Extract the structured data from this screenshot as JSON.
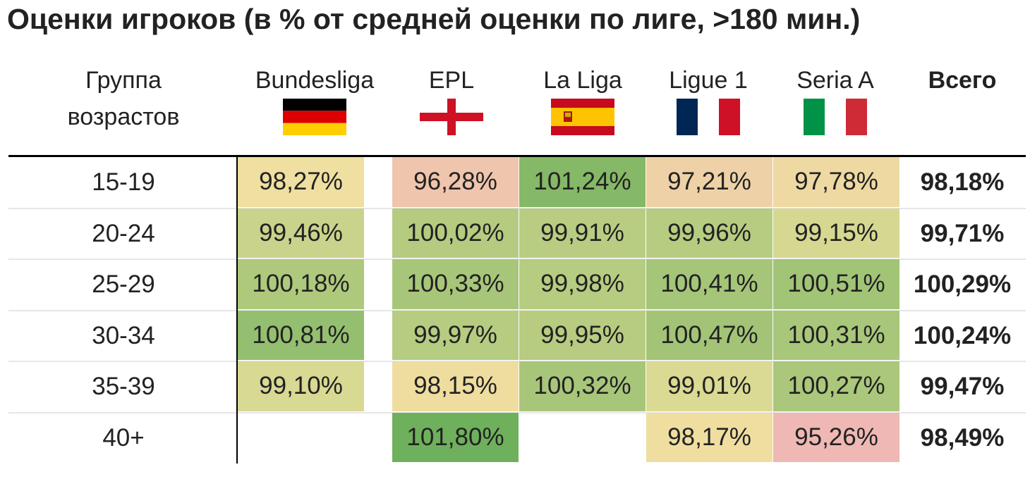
{
  "title": "Оценки игроков (в % от средней оценки по лиге, >180 мин.)",
  "chart_data": {
    "type": "heatmap",
    "title": "Оценки игроков (в % от средней оценки по лиге, >180 мин.)",
    "row_header": "Группа возрастов",
    "columns": [
      {
        "name": "Bundesliga",
        "flag": "germany-flag"
      },
      {
        "name": "EPL",
        "flag": "england-flag"
      },
      {
        "name": "La Liga",
        "flag": "spain-flag"
      },
      {
        "name": "Ligue 1",
        "flag": "france-flag"
      },
      {
        "name": "Seria A",
        "flag": "italy-flag"
      }
    ],
    "total_header": "Всего",
    "rows": [
      {
        "label": "15-19",
        "values": [
          "98,27%",
          "96,28%",
          "101,24%",
          "97,21%",
          "97,78%"
        ],
        "total": "98,18%"
      },
      {
        "label": "20-24",
        "values": [
          "99,46%",
          "100,02%",
          "99,91%",
          "99,96%",
          "99,15%"
        ],
        "total": "99,71%"
      },
      {
        "label": "25-29",
        "values": [
          "100,18%",
          "100,33%",
          "99,98%",
          "100,41%",
          "100,51%"
        ],
        "total": "100,29%"
      },
      {
        "label": "30-34",
        "values": [
          "100,81%",
          "99,97%",
          "99,95%",
          "100,47%",
          "100,31%"
        ],
        "total": "100,24%"
      },
      {
        "label": "35-39",
        "values": [
          "99,10%",
          "98,15%",
          "100,32%",
          "99,01%",
          "100,27%"
        ],
        "total": "99,47%"
      },
      {
        "label": "40+",
        "values": [
          null,
          "101,80%",
          null,
          "98,17%",
          "95,26%"
        ],
        "total": "98,49%"
      }
    ],
    "colors": {
      "low": "#efb8b4",
      "mid": "#efe29e",
      "high": "#6fb05c",
      "flag_germany": [
        "#000000",
        "#dd0000",
        "#ffce00"
      ],
      "flag_england": [
        "#ffffff",
        "#ce1124"
      ],
      "flag_spain": [
        "#c60b1e",
        "#ffc400"
      ],
      "flag_france": [
        "#002654",
        "#ffffff",
        "#ce1126"
      ],
      "flag_italy": [
        "#009246",
        "#ffffff",
        "#ce2b37"
      ]
    }
  }
}
